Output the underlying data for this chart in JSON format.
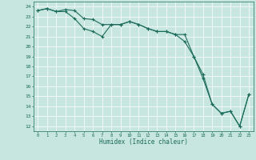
{
  "xlabel": "Humidex (Indice chaleur)",
  "ylabel": "",
  "xlim": [
    -0.5,
    23.5
  ],
  "ylim": [
    11.5,
    24.5
  ],
  "yticks": [
    12,
    13,
    14,
    15,
    16,
    17,
    18,
    19,
    20,
    21,
    22,
    23,
    24
  ],
  "xticks": [
    0,
    1,
    2,
    3,
    4,
    5,
    6,
    7,
    8,
    9,
    10,
    11,
    12,
    13,
    14,
    15,
    16,
    17,
    18,
    19,
    20,
    21,
    22,
    23
  ],
  "background_color": "#c8e6e0",
  "grid_color": "#ffffff",
  "line_color": "#1a6b5a",
  "line1_x": [
    0,
    1,
    2,
    3,
    4,
    5,
    6,
    7,
    8,
    9,
    10,
    11,
    12,
    13,
    14,
    15,
    16,
    17,
    18,
    19,
    20,
    21,
    22,
    23
  ],
  "line1_y": [
    23.6,
    23.8,
    23.5,
    23.7,
    23.6,
    22.8,
    22.7,
    22.2,
    22.2,
    22.2,
    22.5,
    22.2,
    21.8,
    21.5,
    21.5,
    21.2,
    21.2,
    19.0,
    16.8,
    14.2,
    13.3,
    13.5,
    12.0,
    15.2
  ],
  "line2_x": [
    0,
    1,
    2,
    3,
    4,
    5,
    6,
    7,
    8,
    9,
    10,
    11,
    12,
    13,
    14,
    15,
    16,
    17,
    18,
    19,
    20,
    21,
    22,
    23
  ],
  "line2_y": [
    23.6,
    23.8,
    23.5,
    23.5,
    22.8,
    21.8,
    21.5,
    21.0,
    22.2,
    22.2,
    22.5,
    22.2,
    21.8,
    21.5,
    21.5,
    21.2,
    20.5,
    19.0,
    17.2,
    14.2,
    13.3,
    13.5,
    12.0,
    15.2
  ],
  "marker": "+",
  "markersize": 3,
  "linewidth": 0.8
}
